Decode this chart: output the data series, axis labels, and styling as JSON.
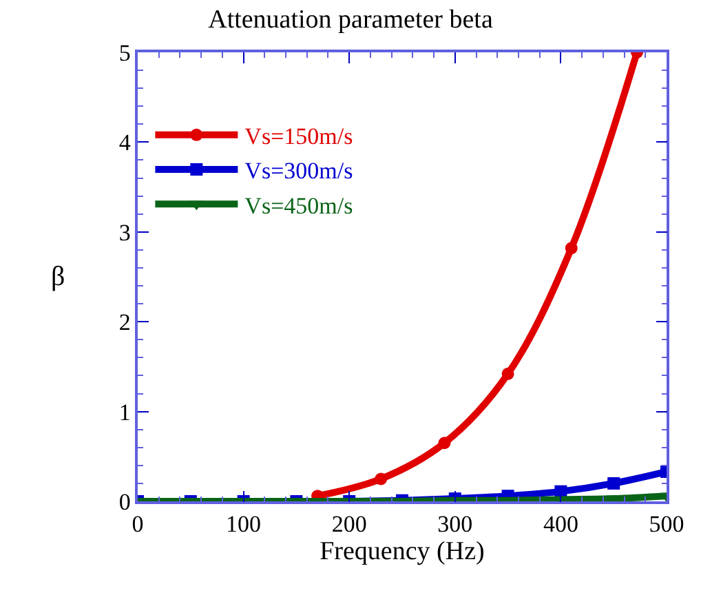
{
  "chart_data": {
    "type": "line",
    "title": "Attenuation parameter beta",
    "xlabel": "Frequency (Hz)",
    "ylabel": "β",
    "xlim": [
      0,
      500
    ],
    "xticks": [
      0,
      100,
      200,
      300,
      400,
      500
    ],
    "ylim": [
      0,
      5
    ],
    "yticks": [
      0,
      1,
      2,
      3,
      4,
      5
    ],
    "legend": "top left",
    "series": [
      {
        "name": "Vs=150m/s",
        "color": "#e00000",
        "marker": "circle",
        "x": [
          170,
          230,
          290,
          350,
          410,
          472
        ],
        "values": [
          0.06,
          0.25,
          0.65,
          1.42,
          2.82,
          5.0
        ]
      },
      {
        "name": "Vs=300m/s",
        "color": "#0000d0",
        "marker": "square",
        "x": [
          0,
          50,
          100,
          150,
          200,
          250,
          300,
          350,
          400,
          450,
          500
        ],
        "values": [
          0,
          0,
          0,
          0,
          0,
          0.01,
          0.03,
          0.06,
          0.11,
          0.2,
          0.33
        ]
      },
      {
        "name": "Vs=450m/s",
        "color": "#0a6418",
        "marker": "triangle",
        "x": [
          0,
          50,
          100,
          150,
          200,
          250,
          300,
          350,
          400,
          450,
          500
        ],
        "values": [
          0,
          0,
          0,
          0,
          0,
          0,
          0.01,
          0.01,
          0.02,
          0.03,
          0.06
        ]
      }
    ]
  }
}
